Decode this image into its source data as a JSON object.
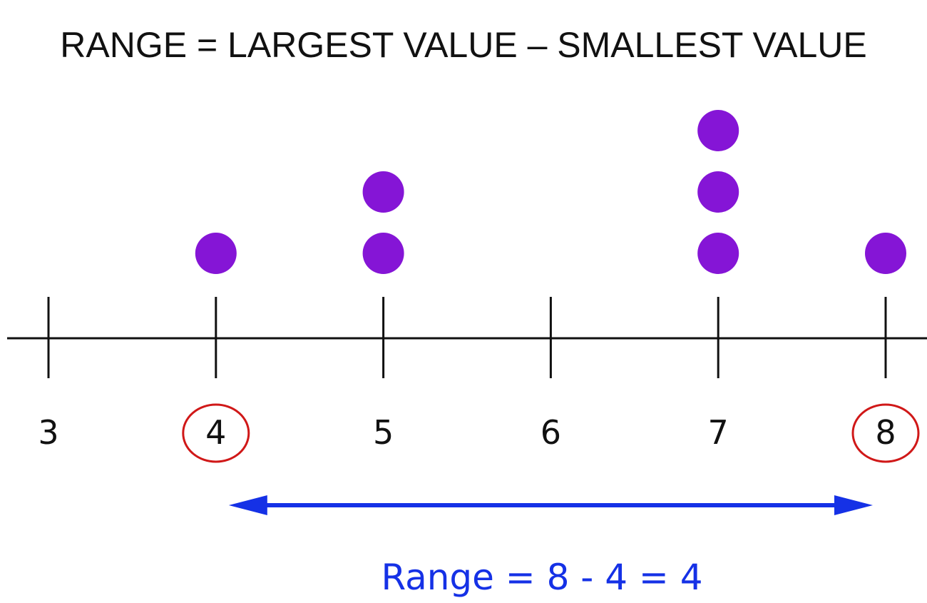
{
  "title": "RANGE = LARGEST VALUE – SMALLEST VALUE",
  "chart_data": {
    "type": "dot plot",
    "axis": {
      "min": 3,
      "max": 8,
      "ticks": [
        3,
        4,
        5,
        6,
        7,
        8
      ],
      "tick_labels": [
        "3",
        "4",
        "5",
        "6",
        "7",
        "8"
      ]
    },
    "values": [
      4,
      5,
      5,
      7,
      7,
      7,
      8
    ],
    "counts": [
      {
        "x": 3,
        "count": 0
      },
      {
        "x": 4,
        "count": 1
      },
      {
        "x": 5,
        "count": 2
      },
      {
        "x": 6,
        "count": 0
      },
      {
        "x": 7,
        "count": 3
      },
      {
        "x": 8,
        "count": 1
      }
    ],
    "circled_values": [
      4,
      8
    ],
    "range_arrow": {
      "from": 4,
      "to": 8
    },
    "annotation": "Range = 8 - 4 = 4",
    "colors": {
      "dot": "#8515d6",
      "axis": "#111111",
      "circle": "#d01818",
      "arrow": "#1531e6",
      "annotation": "#1531e6"
    }
  }
}
